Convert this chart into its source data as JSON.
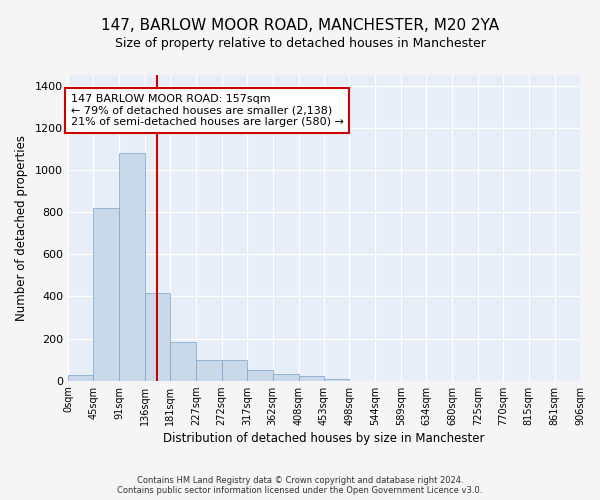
{
  "title": "147, BARLOW MOOR ROAD, MANCHESTER, M20 2YA",
  "subtitle": "Size of property relative to detached houses in Manchester",
  "xlabel": "Distribution of detached houses by size in Manchester",
  "ylabel": "Number of detached properties",
  "footer_line1": "Contains HM Land Registry data © Crown copyright and database right 2024.",
  "footer_line2": "Contains public sector information licensed under the Open Government Licence v3.0.",
  "annotation_line1": "147 BARLOW MOOR ROAD: 157sqm",
  "annotation_line2": "← 79% of detached houses are smaller (2,138)",
  "annotation_line3": "21% of semi-detached houses are larger (580) →",
  "property_size": 157,
  "bar_color": "#c9d9ea",
  "bar_edge_color": "#7ba3c8",
  "vline_color": "#cc0000",
  "annotation_box_color": "#ffffff",
  "annotation_box_edge": "#cc0000",
  "plot_bg_color": "#e8eef8",
  "fig_bg_color": "#f5f5f5",
  "grid_color": "#ffffff",
  "bin_edges": [
    0,
    45,
    91,
    136,
    181,
    227,
    272,
    317,
    362,
    408,
    453,
    498,
    544,
    589,
    634,
    680,
    725,
    770,
    815,
    861,
    906
  ],
  "bar_heights": [
    25,
    820,
    1080,
    415,
    185,
    100,
    100,
    50,
    30,
    20,
    10,
    0,
    0,
    0,
    0,
    0,
    0,
    0,
    0,
    0
  ],
  "ylim": [
    0,
    1450
  ],
  "yticks": [
    0,
    200,
    400,
    600,
    800,
    1000,
    1200,
    1400
  ],
  "title_fontsize": 11,
  "subtitle_fontsize": 9,
  "axis_label_fontsize": 8.5,
  "tick_fontsize": 7,
  "footer_fontsize": 6,
  "annot_fontsize": 8
}
